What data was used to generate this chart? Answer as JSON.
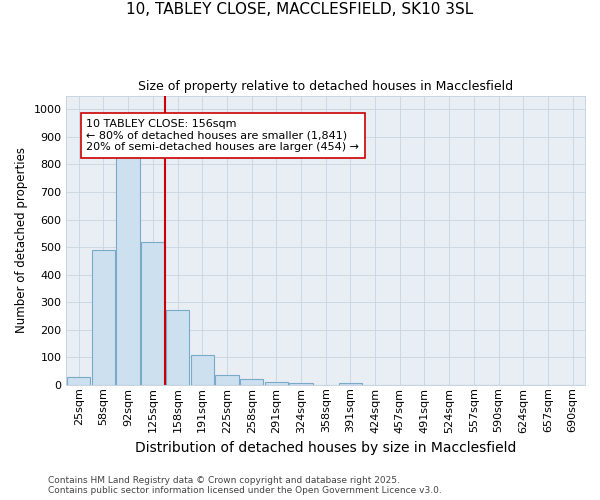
{
  "title_line1": "10, TABLEY CLOSE, MACCLESFIELD, SK10 3SL",
  "title_line2": "Size of property relative to detached houses in Macclesfield",
  "xlabel": "Distribution of detached houses by size in Macclesfield",
  "ylabel": "Number of detached properties",
  "categories": [
    "25sqm",
    "58sqm",
    "92sqm",
    "125sqm",
    "158sqm",
    "191sqm",
    "225sqm",
    "258sqm",
    "291sqm",
    "324sqm",
    "358sqm",
    "391sqm",
    "424sqm",
    "457sqm",
    "491sqm",
    "524sqm",
    "557sqm",
    "590sqm",
    "624sqm",
    "657sqm",
    "690sqm"
  ],
  "values": [
    28,
    490,
    830,
    520,
    270,
    108,
    35,
    20,
    10,
    5,
    0,
    7,
    0,
    0,
    0,
    0,
    0,
    0,
    0,
    0,
    0
  ],
  "bar_color": "#cce0f0",
  "bar_edge_color": "#7aaac8",
  "vline_color": "#cc0000",
  "annotation_text": "10 TABLEY CLOSE: 156sqm\n← 80% of detached houses are smaller (1,841)\n20% of semi-detached houses are larger (454) →",
  "ylim": [
    0,
    1050
  ],
  "yticks": [
    0,
    100,
    200,
    300,
    400,
    500,
    600,
    700,
    800,
    900,
    1000
  ],
  "fig_background": "#ffffff",
  "plot_background": "#e8eef4",
  "grid_color": "#c8d4e0",
  "footer_line1": "Contains HM Land Registry data © Crown copyright and database right 2025.",
  "footer_line2": "Contains public sector information licensed under the Open Government Licence v3.0.",
  "title_fontsize": 11,
  "subtitle_fontsize": 9,
  "ylabel_fontsize": 8.5,
  "xlabel_fontsize": 10,
  "tick_fontsize": 8,
  "annotation_fontsize": 8,
  "footer_fontsize": 6.5
}
